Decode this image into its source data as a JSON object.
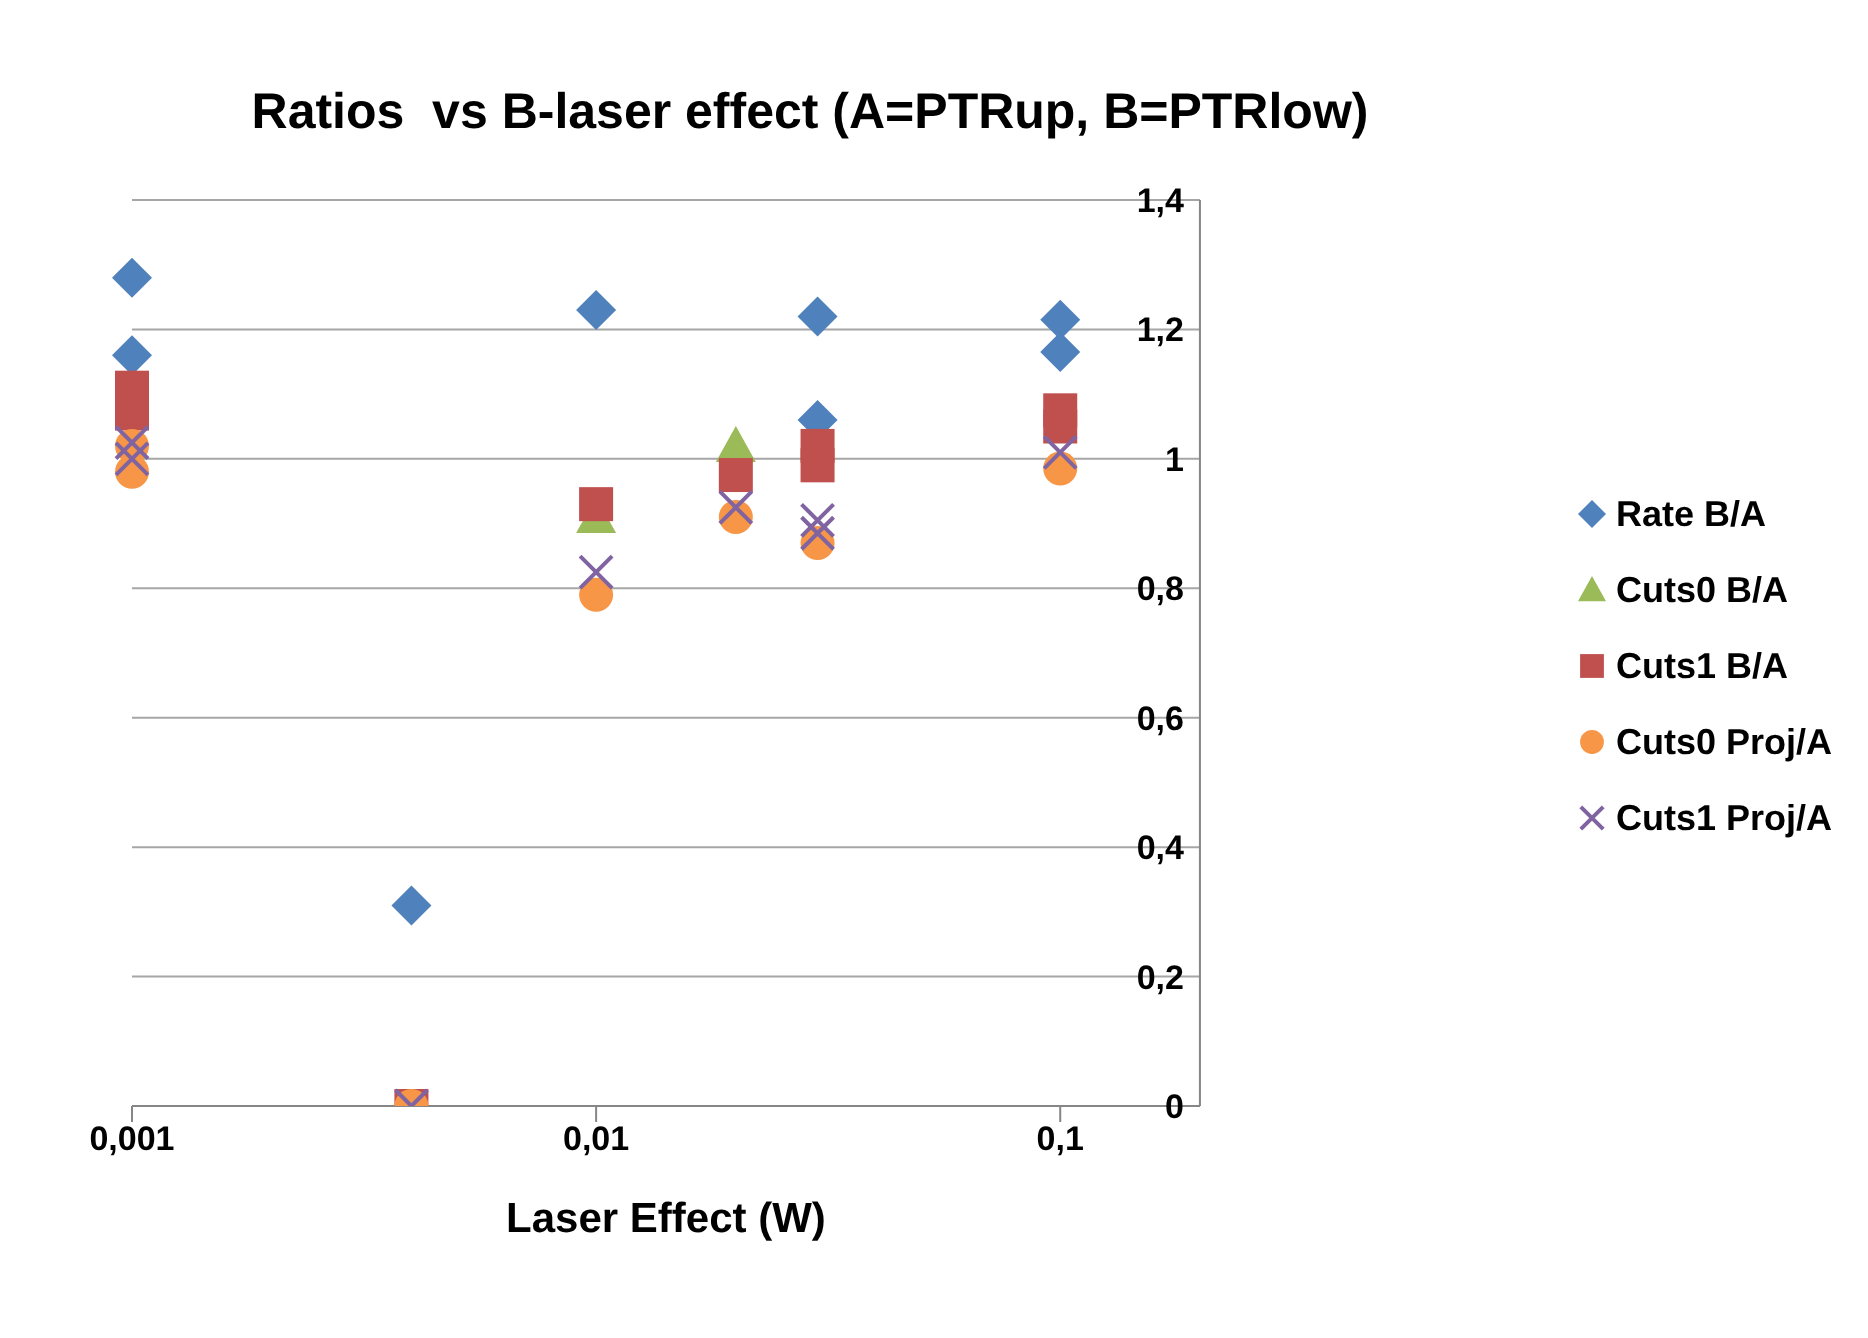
{
  "chart_data": {
    "type": "scatter",
    "title": "Ratios  vs B-laser effect (A=PTRup, B=PTRlow)",
    "xlabel": "Laser Effect (W)",
    "log": "x",
    "xlim": [
      0.001,
      0.2
    ],
    "xticks": [
      {
        "value": 0.001,
        "label": "0,001"
      },
      {
        "value": 0.01,
        "label": "0,01"
      },
      {
        "value": 0.1,
        "label": "0,1"
      }
    ],
    "ylim": [
      0,
      1.4
    ],
    "yticks": [
      0,
      {
        "value": 0.2,
        "label": "0,2"
      },
      {
        "value": 0.4,
        "label": "0,4"
      },
      {
        "value": 0.6,
        "label": "0,6"
      },
      {
        "value": 0.8,
        "label": "0,8"
      },
      1,
      {
        "value": 1.2,
        "label": "1,2"
      },
      {
        "value": 1.4,
        "label": "1,4"
      }
    ],
    "grid": "y",
    "legend": "right",
    "series": [
      {
        "name": "Rate B/A",
        "color": "#4f81bd",
        "marker": "diamond",
        "x": [
          0.001,
          0.001,
          0.004,
          0.01,
          0.03,
          0.03,
          0.1,
          0.1
        ],
        "values": [
          1.28,
          1.16,
          0.31,
          1.23,
          1.22,
          1.06,
          1.215,
          1.165
        ]
      },
      {
        "name": "Cuts0 B/A",
        "color": "#9bbb59",
        "marker": "triangle",
        "x": [
          0.01,
          0.02
        ],
        "values": [
          0.91,
          1.02
        ]
      },
      {
        "name": "Cuts1 B/A",
        "color": "#c0504d",
        "marker": "square",
        "x": [
          0.001,
          0.001,
          0.004,
          0.01,
          0.02,
          0.03,
          0.03,
          0.1,
          0.1
        ],
        "values": [
          1.11,
          1.07,
          0,
          0.93,
          0.975,
          1.02,
          0.99,
          1.075,
          1.05
        ]
      },
      {
        "name": "Cuts0 Proj/A",
        "color": "#f79646",
        "marker": "circle",
        "x": [
          0.001,
          0.001,
          0.004,
          0.01,
          0.02,
          0.03,
          0.1
        ],
        "values": [
          1.02,
          0.98,
          0,
          0.79,
          0.91,
          0.87,
          0.985
        ]
      },
      {
        "name": "Cuts1 Proj/A",
        "color": "#8064a2",
        "marker": "cross",
        "x": [
          0.001,
          0.001,
          0.004,
          0.01,
          0.02,
          0.03,
          0.03,
          0.1
        ],
        "values": [
          1.025,
          1.0,
          0,
          0.825,
          0.925,
          0.905,
          0.885,
          1.01
        ]
      }
    ]
  }
}
